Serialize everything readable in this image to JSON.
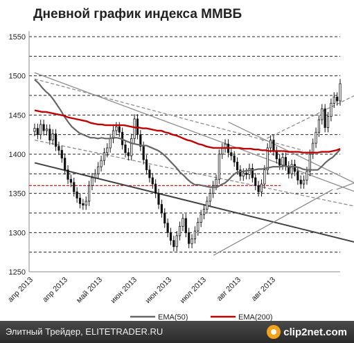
{
  "chart_data": {
    "type": "line",
    "title": "Дневной график индекса ММВБ",
    "ylim": [
      1250,
      1550
    ],
    "y_ticks": [
      1250,
      1300,
      1350,
      1400,
      1450,
      1500,
      1550
    ],
    "x_tick_labels": [
      "апр 2013",
      "апр 2013",
      "май 2013",
      "июн 2013",
      "июн 2013",
      "июл 2013",
      "авг 2013",
      "авг 2013"
    ],
    "grid": "horizontal dashed",
    "legend_position": "bottom",
    "series": [
      {
        "name": "EMA(50)",
        "color": "#666666",
        "values": [
          1495,
          1491,
          1485,
          1480,
          1476,
          1470,
          1463,
          1456,
          1448,
          1441,
          1435,
          1431,
          1427,
          1425,
          1423,
          1421,
          1421,
          1420,
          1421,
          1420,
          1420,
          1421,
          1421,
          1420,
          1418,
          1416,
          1414,
          1413,
          1412,
          1411,
          1411,
          1409,
          1407,
          1405,
          1402,
          1398,
          1393,
          1388,
          1383,
          1377,
          1373,
          1368,
          1364,
          1361,
          1361,
          1360,
          1359,
          1358,
          1358,
          1358,
          1361,
          1363,
          1367,
          1372,
          1376,
          1378,
          1378,
          1379,
          1380,
          1380,
          1381,
          1381,
          1382,
          1383,
          1384,
          1384,
          1384,
          1385,
          1384,
          1384,
          1384,
          1383,
          1381,
          1380,
          1380,
          1380,
          1380,
          1384,
          1389,
          1393,
          1396,
          1401,
          1406
        ]
      },
      {
        "name": "EMA(200)",
        "color": "#c00000",
        "values": [
          1456,
          1455,
          1454,
          1454,
          1453,
          1452,
          1451,
          1450,
          1449,
          1447,
          1446,
          1445,
          1444,
          1443,
          1442,
          1440,
          1439,
          1438,
          1438,
          1437,
          1437,
          1437,
          1437,
          1437,
          1437,
          1436,
          1435,
          1434,
          1434,
          1433,
          1433,
          1432,
          1431,
          1430,
          1430,
          1428,
          1427,
          1425,
          1424,
          1422,
          1420,
          1418,
          1417,
          1415,
          1413,
          1412,
          1410,
          1409,
          1408,
          1408,
          1408,
          1408,
          1408,
          1408,
          1408,
          1408,
          1407,
          1407,
          1407,
          1406,
          1406,
          1405,
          1405,
          1404,
          1404,
          1404,
          1404,
          1404,
          1403,
          1403,
          1403,
          1403,
          1402,
          1402,
          1402,
          1402,
          1402,
          1403,
          1403,
          1403,
          1404,
          1405,
          1407
        ]
      }
    ],
    "candles": [
      1433,
      1425,
      1438,
      1430,
      1432,
      1418,
      1426,
      1410,
      1405,
      1395,
      1380,
      1368,
      1364,
      1352,
      1344,
      1337,
      1335,
      1340,
      1360,
      1370,
      1375,
      1384,
      1392,
      1402,
      1408,
      1420,
      1430,
      1435,
      1428,
      1412,
      1402,
      1398,
      1420,
      1445,
      1425,
      1410,
      1393,
      1380,
      1370,
      1362,
      1350,
      1336,
      1325,
      1312,
      1300,
      1290,
      1282,
      1296,
      1308,
      1318,
      1300,
      1286,
      1292,
      1302,
      1313,
      1323,
      1330,
      1340,
      1350,
      1360,
      1368,
      1400,
      1408,
      1413,
      1402,
      1398,
      1390,
      1380,
      1372,
      1376,
      1374,
      1382,
      1370,
      1360,
      1352,
      1362,
      1380,
      1408,
      1418,
      1404,
      1394,
      1386,
      1396,
      1385,
      1375,
      1387,
      1378,
      1367,
      1362,
      1367,
      1378,
      1400,
      1414,
      1428,
      1444,
      1458,
      1434,
      1448,
      1465,
      1473,
      1468,
      1490
    ],
    "candle_color": "#111111",
    "trendlines": [
      {
        "from": [
          0,
          1389
        ],
        "to": [
          107,
          1263
        ],
        "color": "#404040",
        "style": "solid"
      },
      {
        "from": [
          0,
          1504
        ],
        "to": [
          107,
          1315
        ],
        "color": "#8c8c8c",
        "style": "solid"
      },
      {
        "from": [
          0,
          1496
        ],
        "to": [
          72,
          1405
        ],
        "color": "#8c8c8c",
        "style": "dashed"
      },
      {
        "from": [
          0,
          1418
        ],
        "to": [
          107,
          1313
        ],
        "color": "#8c8c8c",
        "style": "dashed"
      },
      {
        "from": [
          48,
          1271
        ],
        "to": [
          80,
          1355
        ],
        "color": "#8c8c8c",
        "style": "solid"
      },
      {
        "from": [
          52,
          1441
        ],
        "to": [
          107,
          1315
        ],
        "color": "#8c8c8c",
        "style": "solid"
      },
      {
        "from": [
          61,
          1417
        ],
        "to": [
          107,
          1524
        ],
        "color": "#8c8c8c",
        "style": "dashed"
      },
      {
        "from": [
          81,
          1355
        ],
        "to": [
          107,
          1400
        ],
        "color": "#8c8c8c",
        "style": "solid"
      }
    ],
    "support_level": {
      "y": 1360,
      "color": "#cc0000"
    }
  },
  "footer": {
    "left_text": "Элитный Трейдер, ELITETRADER.RU",
    "brand": "clip2net.com"
  }
}
